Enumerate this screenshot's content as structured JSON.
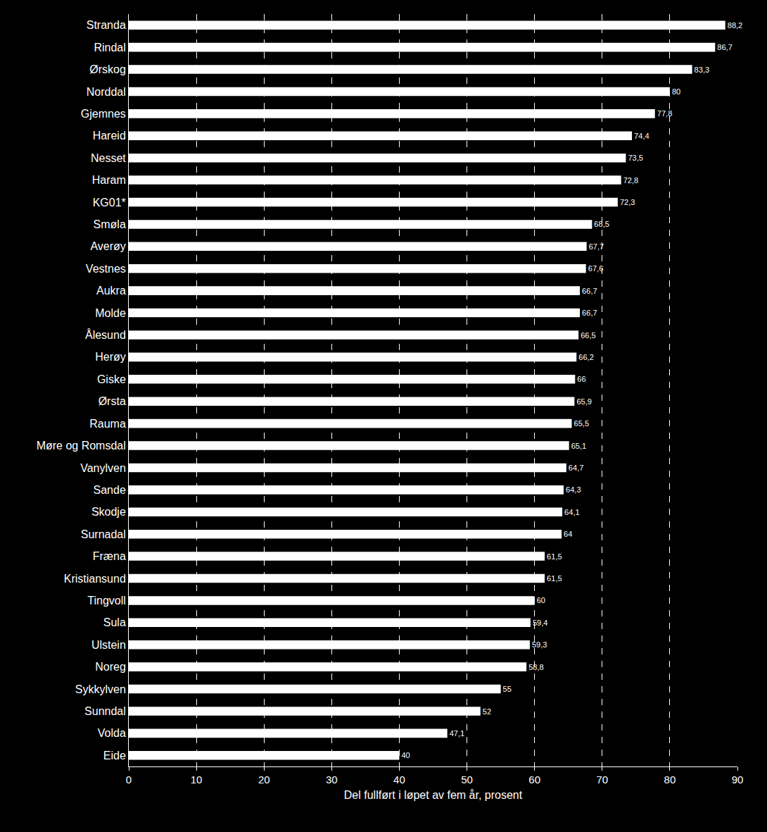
{
  "chart_data": {
    "type": "bar",
    "orientation": "horizontal",
    "categories": [
      "Stranda",
      "Rindal",
      "Ørskog",
      "Norddal",
      "Gjemnes",
      "Hareid",
      "Nesset",
      "Haram",
      "KG01*",
      "Smøla",
      "Averøy",
      "Vestnes",
      "Aukra",
      "Molde",
      "Ålesund",
      "Herøy",
      "Giske",
      "Ørsta",
      "Rauma",
      "Møre og Romsdal",
      "Vanylven",
      "Sande",
      "Skodje",
      "Surnadal",
      "Fræna",
      "Kristiansund",
      "Tingvoll",
      "Sula",
      "Ulstein",
      "Noreg",
      "Sykkylven",
      "Sunndal",
      "Volda",
      "Eide"
    ],
    "values": [
      88.2,
      86.7,
      83.3,
      80,
      77.8,
      74.4,
      73.5,
      72.8,
      72.3,
      68.5,
      67.7,
      67.6,
      66.7,
      66.7,
      66.5,
      66.2,
      66,
      65.9,
      65.5,
      65.1,
      64.7,
      64.3,
      64.1,
      64,
      61.5,
      61.5,
      60,
      59.4,
      59.3,
      58.8,
      55,
      52,
      47.1,
      40
    ],
    "value_labels": [
      "88,2",
      "86,7",
      "83,3",
      "80",
      "77,8",
      "74,4",
      "73,5",
      "72,8",
      "72,3",
      "68,5",
      "67,7",
      "67,6",
      "66,7",
      "66,7",
      "66,5",
      "66,2",
      "66",
      "65,9",
      "65,5",
      "65,1",
      "64,7",
      "64,3",
      "64,1",
      "64",
      "61,5",
      "61,5",
      "60",
      "59,4",
      "59,3",
      "58,8",
      "55",
      "52",
      "47,1",
      "40"
    ],
    "color": "#ffffff",
    "xlabel": "Del fullført i løpet av fem år, prosent",
    "xlim": [
      0,
      90
    ],
    "xticks": [
      0,
      10,
      20,
      30,
      40,
      50,
      60,
      70,
      80,
      90
    ],
    "grid": true,
    "data_labels": true
  }
}
